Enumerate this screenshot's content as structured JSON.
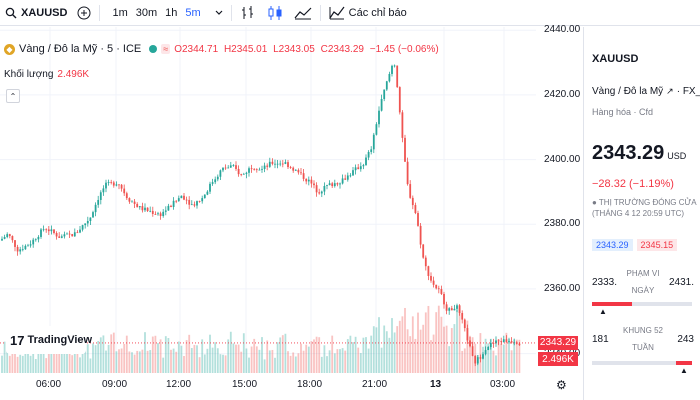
{
  "toolbar": {
    "symbol": "XAUUSD",
    "add_label": "+",
    "intervals": [
      {
        "label": "1m",
        "active": false
      },
      {
        "label": "30m",
        "active": false
      },
      {
        "label": "1h",
        "active": false
      },
      {
        "label": "5m",
        "active": true
      }
    ],
    "alerts_label": "Các chỉ báo"
  },
  "legend": {
    "title": "Vàng / Đô la Mỹ · 5 · ICE",
    "open": "O2344.71",
    "high": "H2345.01",
    "low": "L2343.05",
    "close": "C2343.29",
    "change": "−1.45 (−0.06%)",
    "volume_label": "Khối lượng",
    "volume_value": "2.496K"
  },
  "logo": {
    "text": "TradingView",
    "mark": "17"
  },
  "axis": {
    "y_ticks": [
      "2440.00",
      "2420.00",
      "2400.00",
      "2380.00",
      "2360.00",
      "2340.00"
    ],
    "x_ticks": [
      "06:00",
      "09:00",
      "12:00",
      "15:00",
      "18:00",
      "21:00",
      "13",
      "03:00"
    ],
    "price_label": "2343.29",
    "volume_label": "2.496K"
  },
  "colors": {
    "up": "#26a69a",
    "down": "#ef5350",
    "accent": "#2962ff"
  },
  "panel": {
    "symbol": "XAUUSD",
    "name": "Vàng / Đô la Mỹ",
    "source": "FX_IDC",
    "category": "Hàng hóa · Cfd",
    "price": "2343.29",
    "currency": "USD",
    "change": "−28.32 (−1.19%)",
    "status": "THỊ TRƯỜNG ĐÓNG CỬA",
    "status_time": "(THÁNG 4 12 20:59 UTC)",
    "bid": "2343.29",
    "ask": "2345.15",
    "day_range": {
      "low": "2333.",
      "label": "PHẠM VI NGÀY",
      "high": "2431.",
      "current_fraction": 0.1
    },
    "week52_range": {
      "low": "181",
      "label": "KHUNG 52 TUẦN",
      "high": "243",
      "current_fraction": 0.95
    }
  },
  "chart_data": {
    "type": "candlestick",
    "xlabel": "",
    "ylabel": "",
    "ylim": [
      2334,
      2441
    ],
    "x_ticks": [
      "06:00",
      "09:00",
      "12:00",
      "15:00",
      "18:00",
      "21:00",
      "13",
      "03:00"
    ],
    "price_path": [
      [
        0,
        2375
      ],
      [
        8,
        2377
      ],
      [
        18,
        2372
      ],
      [
        30,
        2374
      ],
      [
        45,
        2379
      ],
      [
        60,
        2376
      ],
      [
        75,
        2377
      ],
      [
        90,
        2382
      ],
      [
        98,
        2388
      ],
      [
        105,
        2392
      ],
      [
        118,
        2393
      ],
      [
        128,
        2388
      ],
      [
        140,
        2385
      ],
      [
        150,
        2384
      ],
      [
        160,
        2383
      ],
      [
        172,
        2386
      ],
      [
        182,
        2389
      ],
      [
        192,
        2386
      ],
      [
        202,
        2388
      ],
      [
        212,
        2393
      ],
      [
        222,
        2397
      ],
      [
        232,
        2398
      ],
      [
        242,
        2395
      ],
      [
        252,
        2398
      ],
      [
        262,
        2397
      ],
      [
        272,
        2399
      ],
      [
        285,
        2399
      ],
      [
        298,
        2396
      ],
      [
        310,
        2393
      ],
      [
        318,
        2390
      ],
      [
        328,
        2392
      ],
      [
        338,
        2393
      ],
      [
        348,
        2395
      ],
      [
        356,
        2397
      ],
      [
        364,
        2399
      ],
      [
        372,
        2404
      ],
      [
        378,
        2414
      ],
      [
        384,
        2421
      ],
      [
        390,
        2427
      ],
      [
        394,
        2431
      ],
      [
        398,
        2421
      ],
      [
        402,
        2407
      ],
      [
        408,
        2391
      ],
      [
        416,
        2383
      ],
      [
        424,
        2368
      ],
      [
        432,
        2362
      ],
      [
        440,
        2359
      ],
      [
        448,
        2353
      ],
      [
        456,
        2355
      ],
      [
        462,
        2350
      ],
      [
        468,
        2344
      ],
      [
        474,
        2337
      ],
      [
        480,
        2339
      ],
      [
        486,
        2342
      ],
      [
        492,
        2343
      ],
      [
        500,
        2344
      ],
      [
        508,
        2344
      ],
      [
        515,
        2344
      ],
      [
        522,
        2343
      ]
    ],
    "last_price": 2343.29
  }
}
